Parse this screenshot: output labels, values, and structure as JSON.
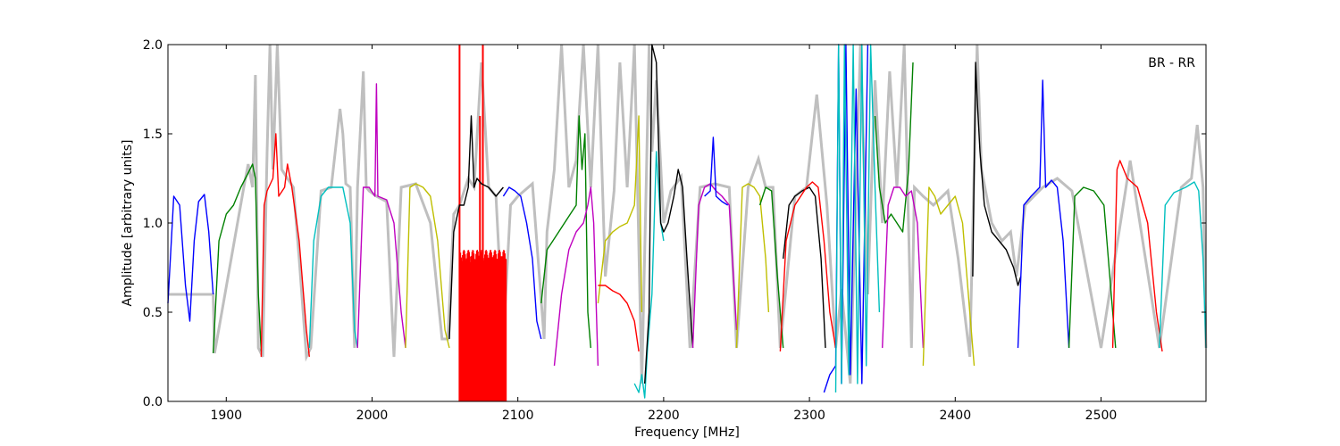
{
  "chart_data": {
    "type": "line",
    "title": "",
    "panel_label": "BR - RR",
    "xlabel": "Frequency [MHz]",
    "ylabel": "Amplitude [arbitrary units]",
    "xlim": [
      1860,
      2572
    ],
    "ylim": [
      0.0,
      2.0
    ],
    "xticks": [
      1900,
      2000,
      2100,
      2200,
      2300,
      2400,
      2500
    ],
    "xtick_labels": [
      "1900",
      "2000",
      "2100",
      "2200",
      "2300",
      "2400",
      "2500"
    ],
    "yticks": [
      0.0,
      0.5,
      1.0,
      1.5,
      2.0
    ],
    "ytick_labels": [
      "0.0",
      "0.5",
      "1.0",
      "1.5",
      "2.0"
    ],
    "grid": false,
    "background_series": {
      "color": "#bfbfbf",
      "x": [
        1860,
        1891,
        1892,
        1912,
        1915,
        1918,
        1920,
        1922,
        1925,
        1928,
        1930,
        1932,
        1935,
        1938,
        1942,
        1946,
        1950,
        1955,
        1958,
        1965,
        1972,
        1978,
        1980,
        1982,
        1985,
        1988,
        1990,
        1994,
        1996,
        1998,
        2003,
        2010,
        2015,
        2020,
        2030,
        2040,
        2048,
        2052,
        2056,
        2060,
        2066,
        2070,
        2075,
        2080,
        2085,
        2090,
        2095,
        2100,
        2110,
        2118,
        2120,
        2125,
        2130,
        2135,
        2140,
        2145,
        2150,
        2155,
        2160,
        2166,
        2170,
        2175,
        2180,
        2185,
        2188,
        2190,
        2192,
        2195,
        2200,
        2205,
        2212,
        2218,
        2225,
        2235,
        2245,
        2250,
        2258,
        2265,
        2270,
        2275,
        2280,
        2290,
        2298,
        2302,
        2305,
        2312,
        2318,
        2322,
        2328,
        2335,
        2340,
        2345,
        2350,
        2355,
        2360,
        2365,
        2370,
        2372,
        2378,
        2385,
        2395,
        2402,
        2410,
        2413,
        2415,
        2418,
        2425,
        2432,
        2438,
        2442,
        2448,
        2460,
        2470,
        2480,
        2500,
        2520,
        2540,
        2555,
        2562,
        2566,
        2570,
        2572
      ],
      "y": [
        0.6,
        0.6,
        0.27,
        1.2,
        1.33,
        1.2,
        1.83,
        0.3,
        0.25,
        1.4,
        2.0,
        1.3,
        2.0,
        1.3,
        1.25,
        1.2,
        0.8,
        0.25,
        0.3,
        1.18,
        1.2,
        1.64,
        1.5,
        1.22,
        1.2,
        0.3,
        1.2,
        1.85,
        1.2,
        1.18,
        1.15,
        1.12,
        0.25,
        1.2,
        1.22,
        1.0,
        0.35,
        0.35,
        1.05,
        1.1,
        1.25,
        1.2,
        1.9,
        1.2,
        1.15,
        0.35,
        1.1,
        1.15,
        1.22,
        0.35,
        0.95,
        1.3,
        2.0,
        1.2,
        1.35,
        2.0,
        1.2,
        2.0,
        0.7,
        1.18,
        1.9,
        1.2,
        2.0,
        0.1,
        1.2,
        2.0,
        1.4,
        1.8,
        1.0,
        1.18,
        1.26,
        0.3,
        1.2,
        1.22,
        1.2,
        0.3,
        1.2,
        1.36,
        1.2,
        1.2,
        0.3,
        1.15,
        1.2,
        1.5,
        1.72,
        1.1,
        0.3,
        0.63,
        0.1,
        2.0,
        0.6,
        1.8,
        1.0,
        1.85,
        1.2,
        2.0,
        0.3,
        1.2,
        1.15,
        1.1,
        1.18,
        0.8,
        0.25,
        1.3,
        2.0,
        1.3,
        1.0,
        0.9,
        0.95,
        0.7,
        1.1,
        1.2,
        1.25,
        1.18,
        0.3,
        1.35,
        0.3,
        1.2,
        1.25,
        1.55,
        1.2,
        0.3
      ]
    },
    "series": [
      {
        "color": "#0000ff",
        "x": [
          1860,
          1864,
          1868,
          1872,
          1875,
          1878,
          1881,
          1885,
          1888,
          1891
        ],
        "y": [
          0.55,
          1.15,
          1.1,
          0.65,
          0.45,
          0.9,
          1.12,
          1.16,
          0.95,
          0.6
        ]
      },
      {
        "color": "#008000",
        "x": [
          1891,
          1895,
          1900,
          1905,
          1910,
          1915,
          1918,
          1920,
          1922,
          1924
        ],
        "y": [
          0.27,
          0.9,
          1.05,
          1.1,
          1.2,
          1.28,
          1.33,
          1.25,
          0.6,
          0.28
        ]
      },
      {
        "color": "#ff0000",
        "x": [
          1924,
          1926,
          1928,
          1932,
          1934,
          1936,
          1940,
          1942,
          1945,
          1950,
          1955,
          1957
        ],
        "y": [
          0.25,
          1.1,
          1.18,
          1.25,
          1.5,
          1.15,
          1.2,
          1.33,
          1.2,
          0.9,
          0.4,
          0.25
        ]
      },
      {
        "color": "#00bfbf",
        "x": [
          1957,
          1960,
          1965,
          1970,
          1980,
          1985,
          1988,
          1990
        ],
        "y": [
          0.3,
          0.9,
          1.15,
          1.2,
          1.2,
          1.0,
          0.4,
          0.3
        ]
      },
      {
        "color": "#bf00bf",
        "x": [
          1990,
          1994,
          1998,
          2002,
          2003,
          2004,
          2010,
          2015,
          2020,
          2023
        ],
        "y": [
          0.3,
          1.2,
          1.2,
          1.15,
          1.78,
          1.15,
          1.13,
          1.0,
          0.5,
          0.3
        ]
      },
      {
        "color": "#bfbf00",
        "x": [
          2023,
          2026,
          2030,
          2035,
          2040,
          2045,
          2050,
          2053
        ],
        "y": [
          0.3,
          1.2,
          1.22,
          1.2,
          1.15,
          0.9,
          0.4,
          0.3
        ]
      },
      {
        "color": "#000000",
        "x": [
          2053,
          2056,
          2060,
          2063,
          2066,
          2068,
          2070,
          2072,
          2075,
          2080,
          2085,
          2090
        ],
        "y": [
          0.35,
          0.95,
          1.1,
          1.1,
          1.2,
          1.6,
          1.2,
          1.25,
          1.22,
          1.2,
          1.15,
          1.2
        ]
      },
      {
        "color": "#0000ff",
        "x": [
          2090,
          2094,
          2098,
          2102,
          2106,
          2110,
          2113,
          2116
        ],
        "y": [
          1.15,
          1.2,
          1.18,
          1.15,
          1.0,
          0.8,
          0.45,
          0.35
        ]
      },
      {
        "color": "#008000",
        "x": [
          2116,
          2120,
          2124,
          2128,
          2132,
          2136,
          2140,
          2142,
          2144,
          2146,
          2148,
          2150
        ],
        "y": [
          0.55,
          0.85,
          0.9,
          0.95,
          1.0,
          1.05,
          1.1,
          1.6,
          1.3,
          1.5,
          0.5,
          0.3
        ]
      },
      {
        "color": "#bf00bf",
        "x": [
          2125,
          2130,
          2135,
          2140,
          2145,
          2148,
          2150,
          2152,
          2155
        ],
        "y": [
          0.2,
          0.6,
          0.85,
          0.95,
          1.0,
          1.1,
          1.2,
          1.0,
          0.2
        ]
      },
      {
        "color": "#bfbf00",
        "x": [
          2155,
          2160,
          2165,
          2170,
          2175,
          2180,
          2183,
          2185
        ],
        "y": [
          0.55,
          0.9,
          0.95,
          0.98,
          1.0,
          1.1,
          1.6,
          0.5
        ]
      },
      {
        "color": "#ff0000",
        "x": [
          2155,
          2160,
          2165,
          2170,
          2175,
          2180,
          2183
        ],
        "y": [
          0.65,
          0.65,
          0.62,
          0.6,
          0.55,
          0.45,
          0.28
        ]
      },
      {
        "color": "#00bfbf",
        "x": [
          2180,
          2183,
          2185,
          2187,
          2189,
          2192,
          2195,
          2198,
          2200
        ],
        "y": [
          0.1,
          0.05,
          0.15,
          0.02,
          0.3,
          0.6,
          1.4,
          1.0,
          0.9
        ]
      },
      {
        "color": "#000000",
        "x": [
          2187,
          2190,
          2192,
          2195,
          2198,
          2200,
          2203,
          2207,
          2210,
          2213,
          2216,
          2220
        ],
        "y": [
          0.1,
          0.5,
          2.0,
          1.9,
          1.0,
          0.95,
          1.0,
          1.15,
          1.3,
          1.2,
          0.8,
          0.3
        ]
      },
      {
        "color": "#bf00bf",
        "x": [
          2220,
          2224,
          2228,
          2232,
          2236,
          2240,
          2245,
          2250
        ],
        "y": [
          0.3,
          1.1,
          1.2,
          1.22,
          1.18,
          1.15,
          1.1,
          0.4
        ]
      },
      {
        "color": "#0000ff",
        "x": [
          2228,
          2232,
          2234,
          2236,
          2240,
          2244
        ],
        "y": [
          1.15,
          1.18,
          1.48,
          1.15,
          1.12,
          1.1
        ]
      },
      {
        "color": "#bfbf00",
        "x": [
          2250,
          2254,
          2258,
          2262,
          2266,
          2270,
          2272
        ],
        "y": [
          0.3,
          1.2,
          1.22,
          1.2,
          1.15,
          0.8,
          0.5
        ]
      },
      {
        "color": "#008000",
        "x": [
          2266,
          2270,
          2274,
          2278,
          2282
        ],
        "y": [
          1.1,
          1.2,
          1.18,
          0.7,
          0.3
        ]
      },
      {
        "color": "#000000",
        "x": [
          2282,
          2286,
          2290,
          2295,
          2300,
          2304,
          2308,
          2311
        ],
        "y": [
          0.8,
          1.1,
          1.15,
          1.18,
          1.2,
          1.15,
          0.8,
          0.3
        ]
      },
      {
        "color": "#ff0000",
        "x": [
          2280,
          2284,
          2290,
          2298,
          2302,
          2306,
          2310,
          2314,
          2318
        ],
        "y": [
          0.28,
          0.9,
          1.1,
          1.2,
          1.23,
          1.2,
          0.9,
          0.5,
          0.3
        ]
      },
      {
        "color": "#0000ff",
        "x": [
          2310,
          2314,
          2318,
          2320,
          2322,
          2325,
          2328,
          2332,
          2336,
          2340
        ],
        "y": [
          0.05,
          0.15,
          0.2,
          2.0,
          0.1,
          2.0,
          0.15,
          1.75,
          0.1,
          2.0
        ]
      },
      {
        "color": "#00bfbf",
        "x": [
          2318,
          2320,
          2322,
          2324,
          2327,
          2330,
          2333,
          2336,
          2339,
          2342,
          2345,
          2348
        ],
        "y": [
          0.05,
          2.0,
          0.1,
          2.0,
          0.15,
          2.0,
          0.1,
          2.0,
          0.2,
          2.0,
          1.2,
          0.5
        ]
      },
      {
        "color": "#008000",
        "x": [
          2345,
          2348,
          2352,
          2356,
          2360,
          2364,
          2368,
          2371
        ],
        "y": [
          1.6,
          1.2,
          1.0,
          1.05,
          1.0,
          0.95,
          1.3,
          1.9
        ]
      },
      {
        "color": "#bf00bf",
        "x": [
          2350,
          2354,
          2358,
          2362,
          2366,
          2370,
          2374,
          2378
        ],
        "y": [
          0.3,
          1.1,
          1.2,
          1.2,
          1.15,
          1.18,
          1.0,
          0.3
        ]
      },
      {
        "color": "#bfbf00",
        "x": [
          2378,
          2382,
          2386,
          2390,
          2395,
          2400,
          2405,
          2410,
          2413
        ],
        "y": [
          0.2,
          1.2,
          1.15,
          1.05,
          1.1,
          1.15,
          1.0,
          0.5,
          0.2
        ]
      },
      {
        "color": "#000000",
        "x": [
          2412,
          2414,
          2415,
          2417,
          2420,
          2425,
          2430,
          2435,
          2440,
          2443,
          2445
        ],
        "y": [
          0.7,
          1.9,
          1.7,
          1.4,
          1.1,
          0.95,
          0.9,
          0.85,
          0.75,
          0.65,
          0.7
        ]
      },
      {
        "color": "#0000ff",
        "x": [
          2443,
          2447,
          2452,
          2458,
          2460,
          2462,
          2466,
          2470,
          2474,
          2478
        ],
        "y": [
          0.3,
          1.1,
          1.15,
          1.2,
          1.8,
          1.2,
          1.24,
          1.2,
          0.9,
          0.3
        ]
      },
      {
        "color": "#008000",
        "x": [
          2478,
          2482,
          2488,
          2495,
          2502,
          2506,
          2510
        ],
        "y": [
          0.3,
          1.15,
          1.2,
          1.18,
          1.1,
          0.7,
          0.3
        ]
      },
      {
        "color": "#ff0000",
        "x": [
          2508,
          2511,
          2513,
          2518,
          2525,
          2532,
          2538,
          2542
        ],
        "y": [
          0.3,
          1.3,
          1.35,
          1.25,
          1.2,
          1.0,
          0.5,
          0.28
        ]
      },
      {
        "color": "#00bfbf",
        "x": [
          2540,
          2544,
          2550,
          2558,
          2564,
          2567,
          2570,
          2572
        ],
        "y": [
          0.3,
          1.1,
          1.17,
          1.2,
          1.23,
          1.18,
          0.8,
          0.3
        ]
      }
    ],
    "red_dense_band": {
      "color": "#ff0000",
      "x_range": [
        2060,
        2092
      ],
      "y_range": [
        0.0,
        0.85
      ],
      "spikes": [
        [
          2060,
          2.0
        ],
        [
          2076,
          2.0
        ],
        [
          2074,
          1.6
        ]
      ]
    },
    "legend": "none"
  }
}
